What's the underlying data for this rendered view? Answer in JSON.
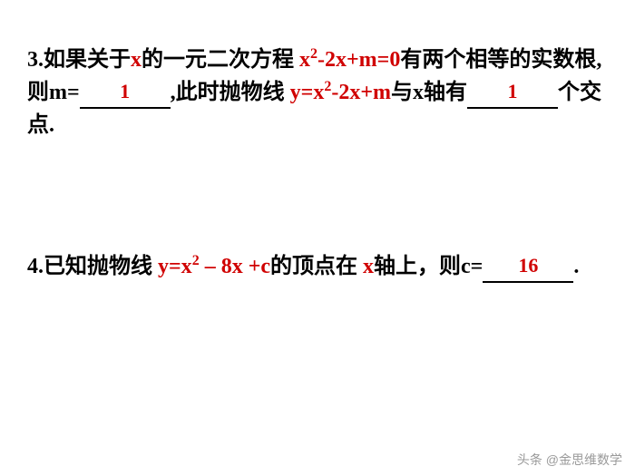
{
  "problem3": {
    "part1": "3.如果关于",
    "x": "x",
    "part2": "的一元二次方程 ",
    "eq_x": "x",
    "eq_sup": "2",
    "eq_rest": "-2x+m=0",
    "part3": "有两个相等的实数根,则",
    "m_label": "m=",
    "answer1": "1",
    "part4": ",此时抛物线 ",
    "eq2_y": "y=x",
    "eq2_sup": "2",
    "eq2_rest": "-2x+m",
    "part5": "与",
    "axis_x": "x",
    "part6": "轴有",
    "answer2": "1",
    "part7": "个交点."
  },
  "problem4": {
    "part1": "4.已知抛物线 ",
    "eq_y": "y=x",
    "eq_sup": "2",
    "eq_rest": " – 8x +c",
    "part2": "的顶点在 ",
    "axis_x": "x",
    "part3": "轴上，则",
    "c_label": "c=",
    "answer": "16",
    "period": "."
  },
  "watermark": "头条 @金思维数学"
}
